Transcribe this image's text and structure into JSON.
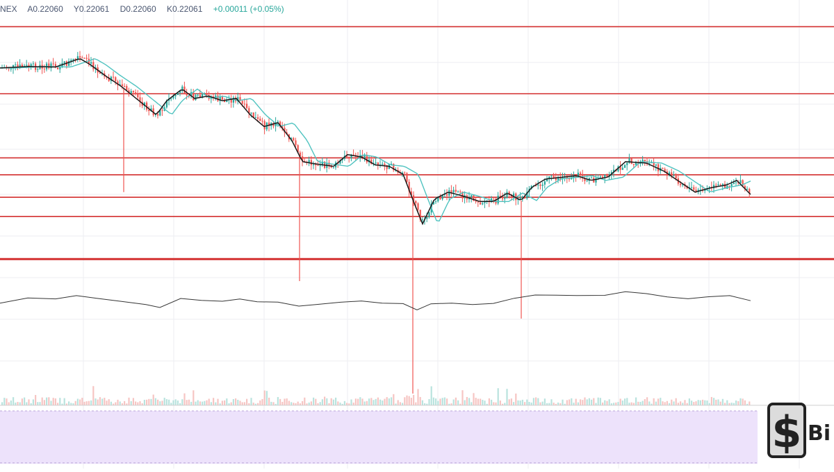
{
  "header": {
    "exchange": "NEX",
    "open": "A0.22060",
    "high": "Y0.22061",
    "low": "D0.22060",
    "close": "K0.22061",
    "change": "+0.00011 (+0.05%)"
  },
  "colors": {
    "candle_up": "#26a69a",
    "candle_down": "#ef5350",
    "ma_fast": "#1a1a1a",
    "ma_slow": "#4fc3c0",
    "level_line": "#d32f2f",
    "oscillator_bg": "#ede2fb",
    "oscillator_line": "#333333"
  },
  "chart_data": {
    "type": "candlestick",
    "grid": true,
    "horizontal_levels": [
      0.2,
      0.337,
      0.373,
      0.421,
      0.462,
      0.553
    ],
    "close_path": [
      [
        0,
        0.145
      ],
      [
        40,
        0.142
      ],
      [
        80,
        0.143
      ],
      [
        115,
        0.125
      ],
      [
        130,
        0.138
      ],
      [
        150,
        0.16
      ],
      [
        175,
        0.185
      ],
      [
        200,
        0.215
      ],
      [
        225,
        0.245
      ],
      [
        240,
        0.215
      ],
      [
        262,
        0.19
      ],
      [
        280,
        0.21
      ],
      [
        300,
        0.205
      ],
      [
        320,
        0.215
      ],
      [
        340,
        0.21
      ],
      [
        360,
        0.245
      ],
      [
        380,
        0.27
      ],
      [
        400,
        0.262
      ],
      [
        420,
        0.3
      ],
      [
        435,
        0.345
      ],
      [
        455,
        0.35
      ],
      [
        480,
        0.355
      ],
      [
        500,
        0.33
      ],
      [
        520,
        0.335
      ],
      [
        540,
        0.352
      ],
      [
        560,
        0.355
      ],
      [
        580,
        0.372
      ],
      [
        595,
        0.43
      ],
      [
        608,
        0.478
      ],
      [
        625,
        0.425
      ],
      [
        645,
        0.41
      ],
      [
        670,
        0.42
      ],
      [
        690,
        0.43
      ],
      [
        710,
        0.43
      ],
      [
        730,
        0.412
      ],
      [
        750,
        0.428
      ],
      [
        765,
        0.4
      ],
      [
        785,
        0.382
      ],
      [
        810,
        0.378
      ],
      [
        830,
        0.375
      ],
      [
        850,
        0.385
      ],
      [
        875,
        0.378
      ],
      [
        900,
        0.345
      ],
      [
        930,
        0.348
      ],
      [
        955,
        0.365
      ],
      [
        975,
        0.385
      ],
      [
        1000,
        0.41
      ],
      [
        1025,
        0.4
      ],
      [
        1045,
        0.395
      ],
      [
        1060,
        0.385
      ],
      [
        1080,
        0.415
      ]
    ],
    "oscillator_path": [
      [
        0,
        0.645
      ],
      [
        40,
        0.638
      ],
      [
        80,
        0.64
      ],
      [
        110,
        0.63
      ],
      [
        140,
        0.638
      ],
      [
        175,
        0.645
      ],
      [
        210,
        0.652
      ],
      [
        230,
        0.655
      ],
      [
        260,
        0.635
      ],
      [
        290,
        0.642
      ],
      [
        320,
        0.645
      ],
      [
        345,
        0.64
      ],
      [
        370,
        0.642
      ],
      [
        400,
        0.645
      ],
      [
        430,
        0.652
      ],
      [
        460,
        0.65
      ],
      [
        490,
        0.645
      ],
      [
        520,
        0.642
      ],
      [
        550,
        0.645
      ],
      [
        580,
        0.648
      ],
      [
        600,
        0.66
      ],
      [
        620,
        0.65
      ],
      [
        650,
        0.645
      ],
      [
        680,
        0.648
      ],
      [
        710,
        0.648
      ],
      [
        740,
        0.638
      ],
      [
        770,
        0.63
      ],
      [
        800,
        0.632
      ],
      [
        830,
        0.63
      ],
      [
        870,
        0.63
      ],
      [
        900,
        0.622
      ],
      [
        930,
        0.625
      ],
      [
        960,
        0.632
      ],
      [
        990,
        0.638
      ],
      [
        1020,
        0.635
      ],
      [
        1050,
        0.63
      ],
      [
        1080,
        0.64
      ]
    ]
  }
}
